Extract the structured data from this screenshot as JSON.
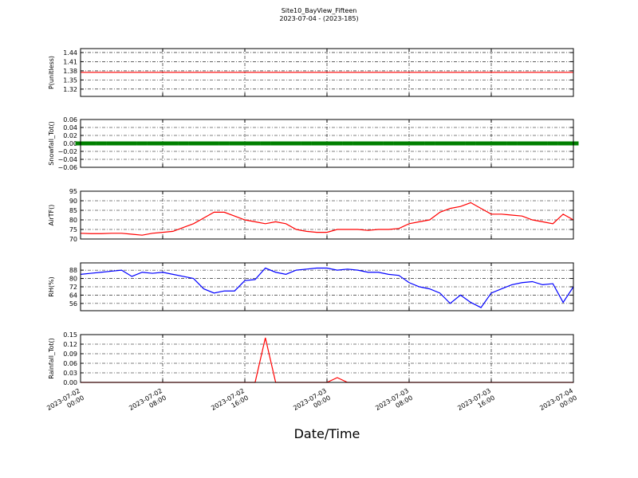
{
  "chart_data": [
    {
      "type": "line",
      "title": "Site10_BayView_Fifteen",
      "subtitle": "2023-07-04 - (2023-185)",
      "ylabel": "P(unitless)",
      "x": [
        "2023-07-02 00:00",
        "2023-07-02 01:00",
        "2023-07-02 02:00",
        "2023-07-02 03:00",
        "2023-07-02 04:00",
        "2023-07-02 05:00",
        "2023-07-02 06:00",
        "2023-07-02 07:00",
        "2023-07-02 08:00",
        "2023-07-02 09:00",
        "2023-07-02 10:00",
        "2023-07-02 11:00",
        "2023-07-02 12:00",
        "2023-07-02 13:00",
        "2023-07-02 14:00",
        "2023-07-02 15:00",
        "2023-07-02 16:00",
        "2023-07-02 17:00",
        "2023-07-02 18:00",
        "2023-07-02 19:00",
        "2023-07-02 20:00",
        "2023-07-02 21:00",
        "2023-07-02 22:00",
        "2023-07-02 23:00",
        "2023-07-03 00:00",
        "2023-07-03 01:00",
        "2023-07-03 02:00",
        "2023-07-03 03:00",
        "2023-07-03 04:00",
        "2023-07-03 05:00",
        "2023-07-03 06:00",
        "2023-07-03 07:00",
        "2023-07-03 08:00",
        "2023-07-03 09:00",
        "2023-07-03 10:00",
        "2023-07-03 11:00",
        "2023-07-03 12:00",
        "2023-07-03 13:00",
        "2023-07-03 14:00",
        "2023-07-03 15:00",
        "2023-07-03 16:00",
        "2023-07-03 17:00",
        "2023-07-03 18:00",
        "2023-07-03 19:00",
        "2023-07-03 20:00",
        "2023-07-03 21:00",
        "2023-07-03 22:00",
        "2023-07-03 23:00",
        "2023-07-04 00:00"
      ],
      "series": [
        {
          "color": "#ff0000",
          "values": [
            1.375,
            1.375,
            1.375,
            1.375,
            1.375,
            1.375,
            1.375,
            1.375,
            1.375,
            1.375,
            1.375,
            1.375,
            1.375,
            1.375,
            1.375,
            1.375,
            1.375,
            1.375,
            1.375,
            1.375,
            1.375,
            1.375,
            1.375,
            1.375,
            1.375,
            1.375,
            1.375,
            1.375,
            1.375,
            1.375,
            1.375,
            1.375,
            1.375,
            1.375,
            1.375,
            1.375,
            1.375,
            1.375,
            1.375,
            1.375,
            1.375,
            1.375,
            1.375,
            1.375,
            1.375,
            1.375,
            1.375,
            1.375,
            1.375
          ]
        }
      ],
      "xlim": [
        "2023-07-02 00:00",
        "2023-07-04 00:00"
      ],
      "xticks": [
        "2023-07-02 00:00",
        "2023-07-02 08:00",
        "2023-07-02 16:00",
        "2023-07-03 00:00",
        "2023-07-03 08:00",
        "2023-07-03 16:00",
        "2023-07-04 00:00"
      ],
      "ylim": [
        1.296,
        1.453
      ],
      "yticks": [
        1.32,
        1.35,
        1.38,
        1.41,
        1.44
      ],
      "grid": true
    },
    {
      "type": "line",
      "ylabel": "Snowfall_Tot()",
      "markers": true,
      "x": [
        "2023-07-02 00:00",
        "2023-07-02 01:00",
        "2023-07-02 02:00",
        "2023-07-02 03:00",
        "2023-07-02 04:00",
        "2023-07-02 05:00",
        "2023-07-02 06:00",
        "2023-07-02 07:00",
        "2023-07-02 08:00",
        "2023-07-02 09:00",
        "2023-07-02 10:00",
        "2023-07-02 11:00",
        "2023-07-02 12:00",
        "2023-07-02 13:00",
        "2023-07-02 14:00",
        "2023-07-02 15:00",
        "2023-07-02 16:00",
        "2023-07-02 17:00",
        "2023-07-02 18:00",
        "2023-07-02 19:00",
        "2023-07-02 20:00",
        "2023-07-02 21:00",
        "2023-07-02 22:00",
        "2023-07-02 23:00",
        "2023-07-03 00:00",
        "2023-07-03 01:00",
        "2023-07-03 02:00",
        "2023-07-03 03:00",
        "2023-07-03 04:00",
        "2023-07-03 05:00",
        "2023-07-03 06:00",
        "2023-07-03 07:00",
        "2023-07-03 08:00",
        "2023-07-03 09:00",
        "2023-07-03 10:00",
        "2023-07-03 11:00",
        "2023-07-03 12:00",
        "2023-07-03 13:00",
        "2023-07-03 14:00",
        "2023-07-03 15:00",
        "2023-07-03 16:00",
        "2023-07-03 17:00",
        "2023-07-03 18:00",
        "2023-07-03 19:00",
        "2023-07-03 20:00",
        "2023-07-03 21:00",
        "2023-07-03 22:00",
        "2023-07-03 23:00",
        "2023-07-04 00:00"
      ],
      "series": [
        {
          "color": "#008000",
          "values": [
            0,
            0,
            0,
            0,
            0,
            0,
            0,
            0,
            0,
            0,
            0,
            0,
            0,
            0,
            0,
            0,
            0,
            0,
            0,
            0,
            0,
            0,
            0,
            0,
            0,
            0,
            0,
            0,
            0,
            0,
            0,
            0,
            0,
            0,
            0,
            0,
            0,
            0,
            0,
            0,
            0,
            0,
            0,
            0,
            0,
            0,
            0,
            0,
            0
          ]
        }
      ],
      "xlim": [
        "2023-07-02 00:00",
        "2023-07-04 00:00"
      ],
      "xticks": [
        "2023-07-02 00:00",
        "2023-07-02 08:00",
        "2023-07-02 16:00",
        "2023-07-03 00:00",
        "2023-07-03 08:00",
        "2023-07-03 16:00",
        "2023-07-04 00:00"
      ],
      "ylim": [
        -0.06,
        0.06
      ],
      "yticks": [
        {
          "value": -0.06,
          "label": "−0.06"
        },
        {
          "value": -0.04,
          "label": "−0.04"
        },
        {
          "value": -0.02,
          "label": "−0.02"
        },
        {
          "value": 0,
          "label": "0.00"
        },
        {
          "value": 0.02,
          "label": "0.02"
        },
        {
          "value": 0.04,
          "label": "0.04"
        },
        {
          "value": 0.06,
          "label": "0.06"
        }
      ],
      "grid": true
    },
    {
      "type": "line",
      "ylabel": "AirTF()",
      "x": [
        "2023-07-02 00:00",
        "2023-07-02 01:00",
        "2023-07-02 02:00",
        "2023-07-02 03:00",
        "2023-07-02 04:00",
        "2023-07-02 05:00",
        "2023-07-02 06:00",
        "2023-07-02 07:00",
        "2023-07-02 08:00",
        "2023-07-02 09:00",
        "2023-07-02 10:00",
        "2023-07-02 11:00",
        "2023-07-02 12:00",
        "2023-07-02 13:00",
        "2023-07-02 14:00",
        "2023-07-02 15:00",
        "2023-07-02 16:00",
        "2023-07-02 17:00",
        "2023-07-02 18:00",
        "2023-07-02 19:00",
        "2023-07-02 20:00",
        "2023-07-02 21:00",
        "2023-07-02 22:00",
        "2023-07-02 23:00",
        "2023-07-03 00:00",
        "2023-07-03 01:00",
        "2023-07-03 02:00",
        "2023-07-03 03:00",
        "2023-07-03 04:00",
        "2023-07-03 05:00",
        "2023-07-03 06:00",
        "2023-07-03 07:00",
        "2023-07-03 08:00",
        "2023-07-03 09:00",
        "2023-07-03 10:00",
        "2023-07-03 11:00",
        "2023-07-03 12:00",
        "2023-07-03 13:00",
        "2023-07-03 14:00",
        "2023-07-03 15:00",
        "2023-07-03 16:00",
        "2023-07-03 17:00",
        "2023-07-03 18:00",
        "2023-07-03 19:00",
        "2023-07-03 20:00",
        "2023-07-03 21:00",
        "2023-07-03 22:00",
        "2023-07-03 23:00",
        "2023-07-04 00:00"
      ],
      "series": [
        {
          "color": "#ff0000",
          "values": [
            73,
            72.8,
            72.8,
            73,
            73,
            72.5,
            72,
            73,
            73.5,
            74,
            76,
            78,
            81,
            84,
            84,
            82,
            80,
            79,
            78,
            79,
            78,
            75,
            74,
            73.5,
            73.5,
            75,
            75,
            75,
            74.5,
            75,
            75,
            75.5,
            78,
            79,
            80,
            84,
            86,
            87,
            89,
            86,
            83,
            83,
            82.5,
            82,
            80,
            79,
            78,
            83,
            80
          ]
        }
      ],
      "xlim": [
        "2023-07-02 00:00",
        "2023-07-04 00:00"
      ],
      "xticks": [
        "2023-07-02 00:00",
        "2023-07-02 08:00",
        "2023-07-02 16:00",
        "2023-07-03 00:00",
        "2023-07-03 08:00",
        "2023-07-03 16:00",
        "2023-07-04 00:00"
      ],
      "ylim": [
        70,
        95
      ],
      "yticks": [
        70,
        75,
        80,
        85,
        90,
        95
      ],
      "grid": true
    },
    {
      "type": "line",
      "ylabel": "RH(%)",
      "x": [
        "2023-07-02 00:00",
        "2023-07-02 01:00",
        "2023-07-02 02:00",
        "2023-07-02 03:00",
        "2023-07-02 04:00",
        "2023-07-02 05:00",
        "2023-07-02 06:00",
        "2023-07-02 07:00",
        "2023-07-02 08:00",
        "2023-07-02 09:00",
        "2023-07-02 10:00",
        "2023-07-02 11:00",
        "2023-07-02 12:00",
        "2023-07-02 13:00",
        "2023-07-02 14:00",
        "2023-07-02 15:00",
        "2023-07-02 16:00",
        "2023-07-02 17:00",
        "2023-07-02 18:00",
        "2023-07-02 19:00",
        "2023-07-02 20:00",
        "2023-07-02 21:00",
        "2023-07-02 22:00",
        "2023-07-02 23:00",
        "2023-07-03 00:00",
        "2023-07-03 01:00",
        "2023-07-03 02:00",
        "2023-07-03 03:00",
        "2023-07-03 04:00",
        "2023-07-03 05:00",
        "2023-07-03 06:00",
        "2023-07-03 07:00",
        "2023-07-03 08:00",
        "2023-07-03 09:00",
        "2023-07-03 10:00",
        "2023-07-03 11:00",
        "2023-07-03 12:00",
        "2023-07-03 13:00",
        "2023-07-03 14:00",
        "2023-07-03 15:00",
        "2023-07-03 16:00",
        "2023-07-03 17:00",
        "2023-07-03 18:00",
        "2023-07-03 19:00",
        "2023-07-03 20:00",
        "2023-07-03 21:00",
        "2023-07-03 22:00",
        "2023-07-03 23:00",
        "2023-07-04 00:00"
      ],
      "series": [
        {
          "color": "#0000ff",
          "values": [
            84,
            85,
            86,
            87,
            88,
            82,
            86,
            85,
            86,
            84,
            82,
            80,
            70,
            66,
            68,
            68,
            78,
            79,
            90,
            86,
            84,
            88,
            89,
            90,
            90,
            88,
            89,
            88,
            86,
            86,
            84,
            83,
            76,
            72,
            70,
            66,
            56,
            64,
            57,
            52,
            66,
            70,
            74,
            76,
            77,
            74,
            75,
            57,
            72
          ]
        }
      ],
      "xlim": [
        "2023-07-02 00:00",
        "2023-07-04 00:00"
      ],
      "xticks": [
        "2023-07-02 00:00",
        "2023-07-02 08:00",
        "2023-07-02 16:00",
        "2023-07-03 00:00",
        "2023-07-03 08:00",
        "2023-07-03 16:00",
        "2023-07-04 00:00"
      ],
      "ylim": [
        49,
        95
      ],
      "yticks": [
        56,
        64,
        72,
        80,
        88
      ],
      "grid": true
    },
    {
      "type": "line",
      "ylabel": "Rainfall_Tot()",
      "xlabel": "Date/Time",
      "x": [
        "2023-07-02 00:00",
        "2023-07-02 01:00",
        "2023-07-02 02:00",
        "2023-07-02 03:00",
        "2023-07-02 04:00",
        "2023-07-02 05:00",
        "2023-07-02 06:00",
        "2023-07-02 07:00",
        "2023-07-02 08:00",
        "2023-07-02 09:00",
        "2023-07-02 10:00",
        "2023-07-02 11:00",
        "2023-07-02 12:00",
        "2023-07-02 13:00",
        "2023-07-02 14:00",
        "2023-07-02 15:00",
        "2023-07-02 16:00",
        "2023-07-02 17:00",
        "2023-07-02 18:00",
        "2023-07-02 19:00",
        "2023-07-02 20:00",
        "2023-07-02 21:00",
        "2023-07-02 22:00",
        "2023-07-02 23:00",
        "2023-07-03 00:00",
        "2023-07-03 01:00",
        "2023-07-03 02:00",
        "2023-07-03 03:00",
        "2023-07-03 04:00",
        "2023-07-03 05:00",
        "2023-07-03 06:00",
        "2023-07-03 07:00",
        "2023-07-03 08:00",
        "2023-07-03 09:00",
        "2023-07-03 10:00",
        "2023-07-03 11:00",
        "2023-07-03 12:00",
        "2023-07-03 13:00",
        "2023-07-03 14:00",
        "2023-07-03 15:00",
        "2023-07-03 16:00",
        "2023-07-03 17:00",
        "2023-07-03 18:00",
        "2023-07-03 19:00",
        "2023-07-03 20:00",
        "2023-07-03 21:00",
        "2023-07-03 22:00",
        "2023-07-03 23:00",
        "2023-07-04 00:00"
      ],
      "series": [
        {
          "color": "#ff0000",
          "values": [
            0,
            0,
            0,
            0,
            0,
            0,
            0,
            0,
            0,
            0,
            0,
            0,
            0,
            0,
            0,
            0,
            0,
            0,
            0.14,
            0,
            0,
            0,
            0,
            0,
            0,
            0.015,
            0,
            0,
            0,
            0,
            0,
            0,
            0,
            0,
            0,
            0,
            0,
            0,
            0,
            0,
            0,
            0,
            0,
            0,
            0,
            0,
            0,
            0,
            0
          ]
        }
      ],
      "xlim": [
        "2023-07-02 00:00",
        "2023-07-04 00:00"
      ],
      "xticks": [
        {
          "value": "2023-07-02 00:00",
          "label": [
            "2023-07-02",
            "00:00"
          ]
        },
        {
          "value": "2023-07-02 08:00",
          "label": [
            "2023-07-02",
            "08:00"
          ]
        },
        {
          "value": "2023-07-02 16:00",
          "label": [
            "2023-07-02",
            "16:00"
          ]
        },
        {
          "value": "2023-07-03 00:00",
          "label": [
            "2023-07-03",
            "00:00"
          ]
        },
        {
          "value": "2023-07-03 08:00",
          "label": [
            "2023-07-03",
            "08:00"
          ]
        },
        {
          "value": "2023-07-03 16:00",
          "label": [
            "2023-07-03",
            "16:00"
          ]
        },
        {
          "value": "2023-07-04 00:00",
          "label": [
            "2023-07-04",
            "00:00"
          ]
        }
      ],
      "ylim": [
        0,
        0.15
      ],
      "yticks": [
        {
          "value": 0,
          "label": "0.00"
        },
        {
          "value": 0.03,
          "label": "0.03"
        },
        {
          "value": 0.06,
          "label": "0.06"
        },
        {
          "value": 0.09,
          "label": "0.09"
        },
        {
          "value": 0.12,
          "label": "0.12"
        },
        {
          "value": 0.15,
          "label": "0.15"
        }
      ],
      "grid": true
    }
  ]
}
